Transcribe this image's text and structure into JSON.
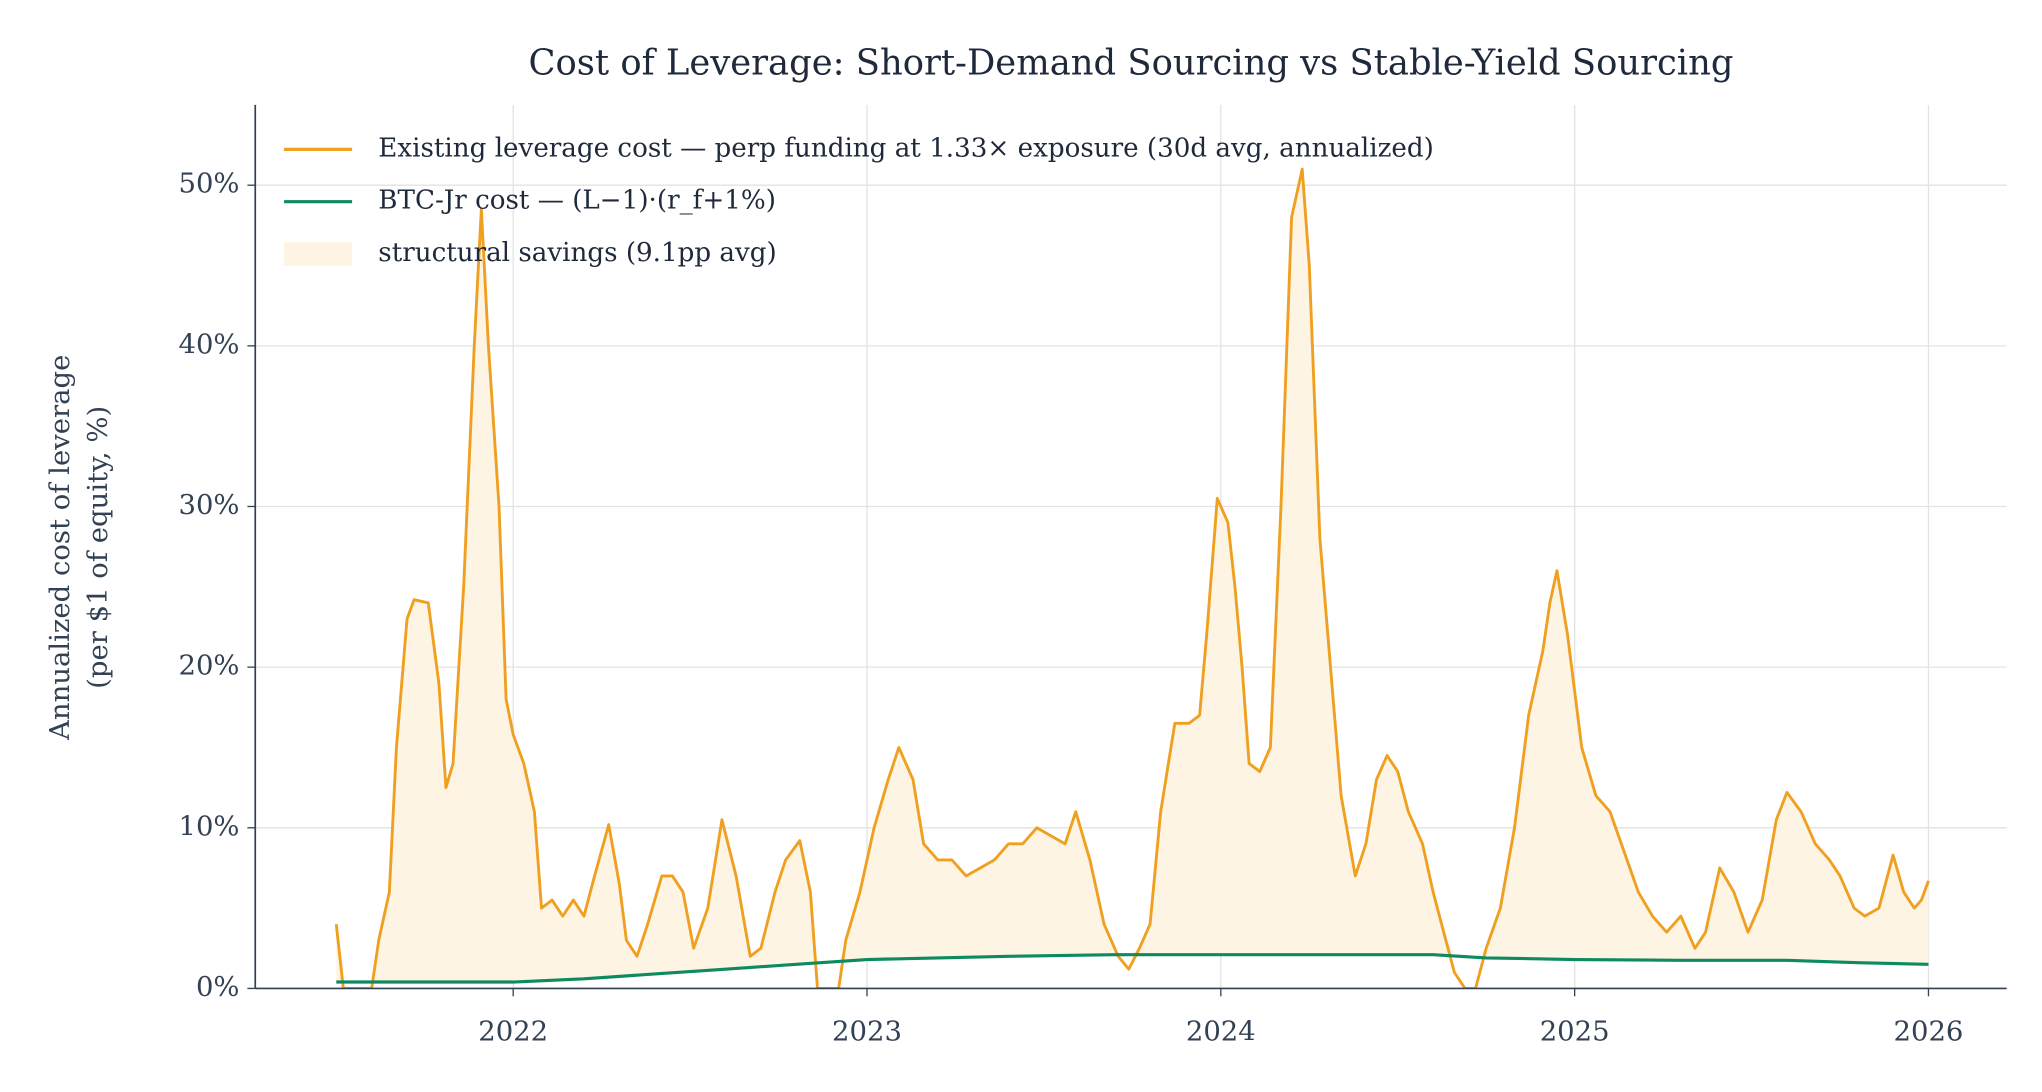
{
  "chart_data": {
    "type": "line",
    "title": "Cost of Leverage: Short-Demand Sourcing vs Stable-Yield Sourcing",
    "y_label": [
      "Annualized cost of leverage",
      "(per $1 of equity, %)"
    ],
    "xlim": [
      2021.271,
      2026.221
    ],
    "xticks": [
      2022,
      2023,
      2024,
      2025,
      2026
    ],
    "ylim": [
      0,
      55
    ],
    "yticks": [
      {
        "value": 0,
        "label": "0%"
      },
      {
        "value": 10,
        "label": "10%"
      },
      {
        "value": 20,
        "label": "20%"
      },
      {
        "value": 30,
        "label": "30%"
      },
      {
        "value": 40,
        "label": "40%"
      },
      {
        "value": 50,
        "label": "50%"
      }
    ],
    "grid": true,
    "legend": "upper left",
    "fill": {
      "name": "structural savings (9.1pp avg)",
      "color": "#fdf4e3"
    },
    "series": [
      {
        "name": "Existing leverage cost — perp funding at 1.33× exposure (30d avg, annualized)",
        "color": "#f0a020",
        "x": [
          2021.5,
          2021.52,
          2021.6,
          2021.62,
          2021.65,
          2021.67,
          2021.7,
          2021.72,
          2021.76,
          2021.79,
          2021.81,
          2021.83,
          2021.86,
          2021.89,
          2021.91,
          2021.93,
          2021.96,
          2021.98,
          2022.0,
          2022.03,
          2022.06,
          2022.08,
          2022.11,
          2022.14,
          2022.17,
          2022.2,
          2022.23,
          2022.27,
          2022.3,
          2022.32,
          2022.35,
          2022.38,
          2022.42,
          2022.45,
          2022.48,
          2022.51,
          2022.55,
          2022.59,
          2022.63,
          2022.67,
          2022.7,
          2022.74,
          2022.77,
          2022.81,
          2022.84,
          2022.86,
          2022.92,
          2022.94,
          2022.98,
          2023.02,
          2023.06,
          2023.09,
          2023.13,
          2023.16,
          2023.2,
          2023.24,
          2023.28,
          2023.32,
          2023.36,
          2023.4,
          2023.44,
          2023.48,
          2023.52,
          2023.56,
          2023.59,
          2023.63,
          2023.67,
          2023.71,
          2023.74,
          2023.77,
          2023.8,
          2023.83,
          2023.87,
          2023.91,
          2023.94,
          2023.96,
          2023.99,
          2024.02,
          2024.04,
          2024.06,
          2024.08,
          2024.11,
          2024.14,
          2024.17,
          2024.2,
          2024.23,
          2024.25,
          2024.28,
          2024.31,
          2024.34,
          2024.38,
          2024.41,
          2024.44,
          2024.47,
          2024.5,
          2024.53,
          2024.57,
          2024.6,
          2024.63,
          2024.66,
          2024.69,
          2024.72,
          2024.75,
          2024.79,
          2024.83,
          2024.87,
          2024.91,
          2024.93,
          2024.95,
          2024.98,
          2025.02,
          2025.06,
          2025.1,
          2025.14,
          2025.18,
          2025.22,
          2025.26,
          2025.3,
          2025.34,
          2025.37,
          2025.41,
          2025.45,
          2025.49,
          2025.53,
          2025.57,
          2025.6,
          2025.64,
          2025.68,
          2025.72,
          2025.75,
          2025.79,
          2025.82,
          2025.86,
          2025.9,
          2025.93,
          2025.96,
          2025.98,
          2026.0
        ],
        "values": [
          4,
          0,
          0,
          3,
          6,
          15,
          23,
          24.2,
          24,
          19,
          12.5,
          14,
          25,
          40,
          48.5,
          40,
          30,
          18,
          15.8,
          14,
          11,
          5,
          5.5,
          4.5,
          5.5,
          4.5,
          7,
          10.2,
          6.5,
          3,
          2,
          4,
          7,
          7,
          6,
          2.5,
          5,
          10.5,
          7,
          2,
          2.5,
          6,
          8,
          9.2,
          6,
          0,
          0,
          3,
          6,
          10,
          13,
          15,
          13,
          9,
          8,
          8,
          7,
          7.5,
          8,
          9,
          9,
          10,
          9.5,
          9,
          11,
          8,
          4,
          2,
          1.2,
          2.5,
          4,
          11,
          16.5,
          16.5,
          17,
          22,
          30.5,
          29,
          25,
          20,
          14,
          13.5,
          15,
          30,
          48,
          51,
          45,
          28,
          20,
          12,
          7,
          9,
          13,
          14.5,
          13.5,
          11,
          9,
          6,
          3.5,
          1,
          0,
          0,
          2.5,
          5,
          10,
          17,
          21,
          24,
          26,
          22,
          15,
          12,
          11,
          8.5,
          6,
          4.5,
          3.5,
          4.5,
          2.5,
          3.5,
          7.5,
          6,
          3.5,
          5.5,
          10.5,
          12.2,
          11,
          9,
          8,
          7,
          5,
          4.5,
          5,
          8.3,
          6,
          5,
          5.5,
          6.7
        ]
      },
      {
        "name": "BTC-Jr cost — (L−1)·(r_f+1%)",
        "color": "#0e8a5f",
        "x": [
          2021.5,
          2022.0,
          2022.2,
          2022.4,
          2022.6,
          2022.8,
          2023.0,
          2023.2,
          2023.4,
          2023.7,
          2024.0,
          2024.3,
          2024.6,
          2024.75,
          2025.0,
          2025.3,
          2025.6,
          2025.8,
          2026.0
        ],
        "values": [
          0.4,
          0.4,
          0.6,
          0.9,
          1.2,
          1.5,
          1.8,
          1.9,
          2.0,
          2.1,
          2.1,
          2.1,
          2.1,
          1.9,
          1.8,
          1.75,
          1.75,
          1.6,
          1.5
        ]
      }
    ]
  }
}
